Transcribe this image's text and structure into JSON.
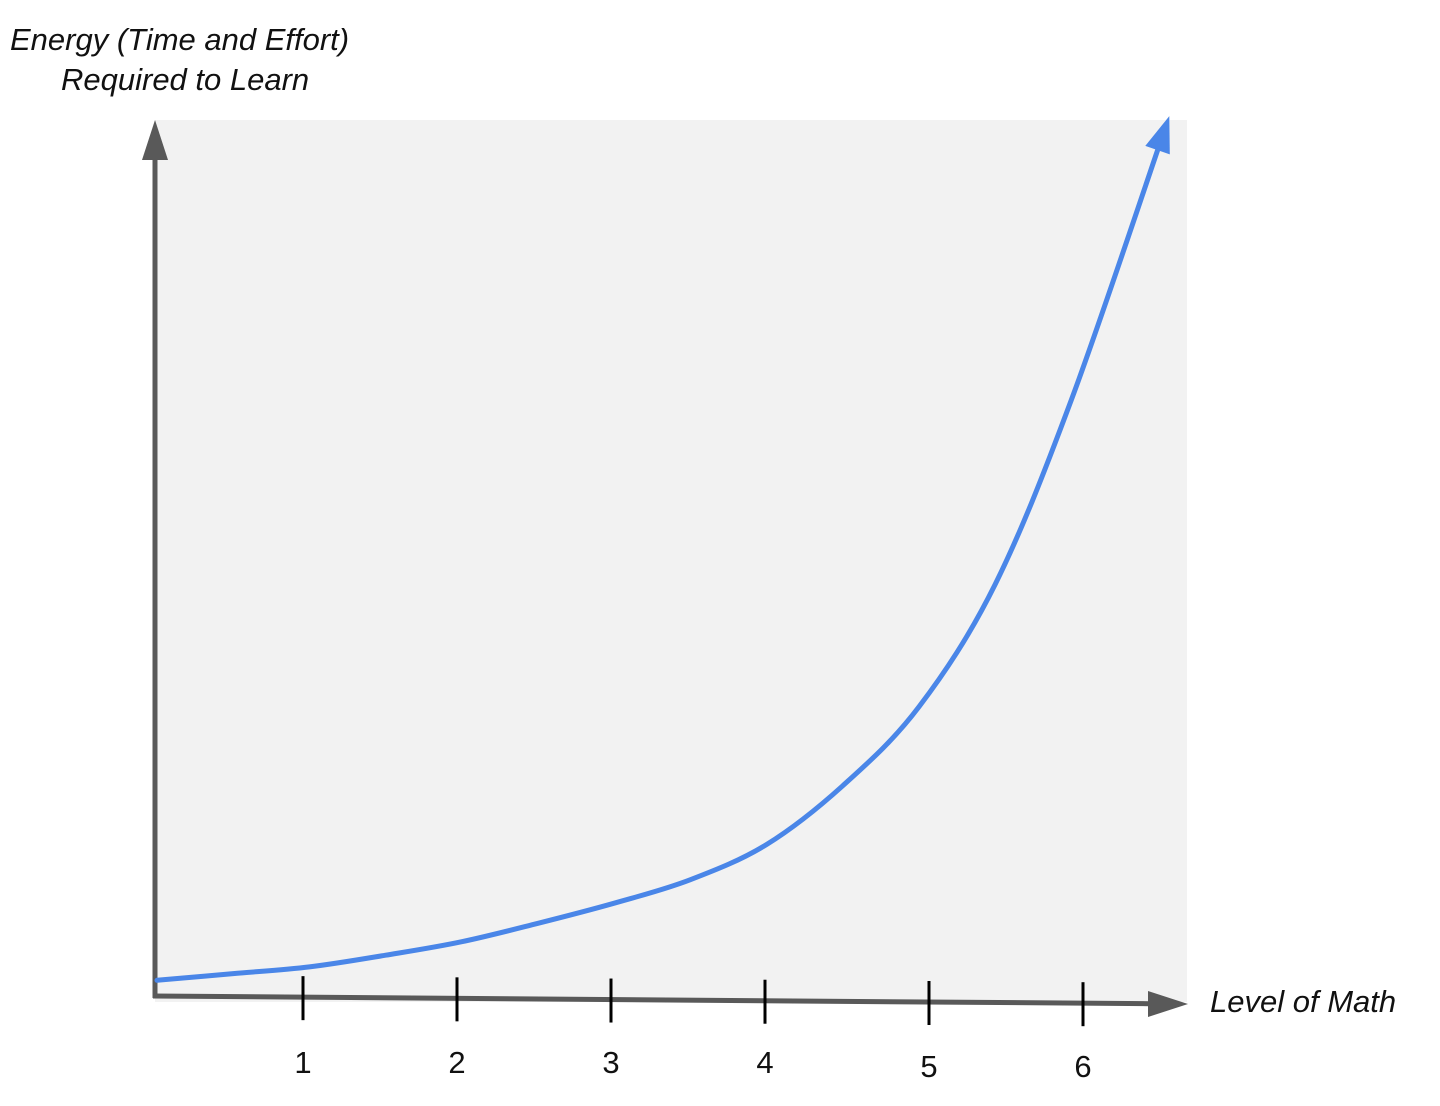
{
  "chart_data": {
    "type": "line",
    "title": "",
    "ylabel_lines": [
      "Energy (Time and Effort)",
      "Required to Learn"
    ],
    "xlabel": "Level of Math",
    "categories": [
      "1",
      "2",
      "3",
      "4",
      "5",
      "6"
    ],
    "x": [
      0,
      0.5,
      1,
      1.5,
      2,
      2.5,
      3,
      3.5,
      4,
      4.5,
      5,
      5.5,
      6,
      6.6
    ],
    "y": [
      0.1,
      0.5,
      0.9,
      1.6,
      2.4,
      3.5,
      4.7,
      6.1,
      8.2,
      11.7,
      16.4,
      23.7,
      34.7,
      50.5
    ],
    "xlim": [
      0,
      6.7
    ],
    "ylim": [
      0,
      50.5
    ],
    "y_ticks_shown": false,
    "grid": false,
    "legend": "none",
    "colors": {
      "curve": "#4a86e8",
      "axis": "#595959",
      "plot_background": "#f2f2f2",
      "tick": "#000000"
    }
  }
}
